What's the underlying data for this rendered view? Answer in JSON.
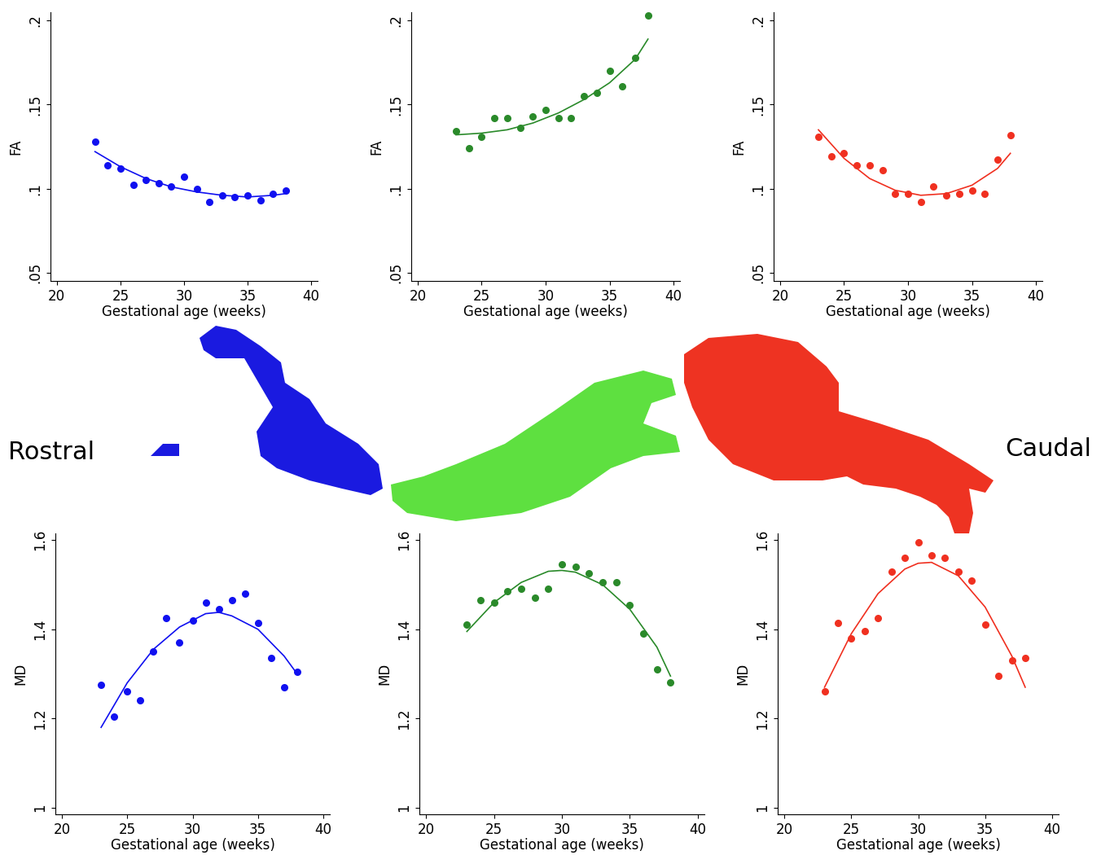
{
  "texts": [
    "Rostral",
    "Caudal"
  ],
  "chart_data": [
    {
      "type": "scatter",
      "color": "#1010f0",
      "xlabel": "Gestational age (weeks)",
      "ylabel": "FA",
      "xlim": [
        19.5,
        40.5
      ],
      "ylim": [
        0.045,
        0.205
      ],
      "xticks": [
        20,
        25,
        30,
        35,
        40
      ],
      "yticks": [
        {
          "value": 0.05,
          "label": ".05"
        },
        {
          "value": 0.1,
          "label": ".1"
        },
        {
          "value": 0.15,
          "label": ".15"
        },
        {
          "value": 0.2,
          "label": ".2"
        }
      ],
      "series": [
        {
          "type": "scatter",
          "marker": "o",
          "x": [
            23,
            24,
            25,
            26,
            27,
            28,
            29,
            30,
            31,
            32,
            33,
            34,
            35,
            36,
            37,
            38
          ],
          "values": [
            0.128,
            0.114,
            0.112,
            0.102,
            0.105,
            0.103,
            0.101,
            0.107,
            0.1,
            0.092,
            0.096,
            0.095,
            0.096,
            0.093,
            0.097,
            0.099
          ]
        },
        {
          "type": "line",
          "line_style": "solid",
          "x": [
            23,
            25,
            27,
            29,
            31,
            33,
            35,
            37,
            38
          ],
          "values": [
            0.122,
            0.113,
            0.106,
            0.101,
            0.098,
            0.096,
            0.095,
            0.096,
            0.097
          ]
        }
      ]
    },
    {
      "type": "scatter",
      "color": "#2a8a2a",
      "xlabel": "Gestational age (weeks)",
      "ylabel": "FA",
      "xlim": [
        19.5,
        40.5
      ],
      "ylim": [
        0.045,
        0.205
      ],
      "xticks": [
        20,
        25,
        30,
        35,
        40
      ],
      "yticks": [
        {
          "value": 0.05,
          "label": ".05"
        },
        {
          "value": 0.1,
          "label": ".1"
        },
        {
          "value": 0.15,
          "label": ".15"
        },
        {
          "value": 0.2,
          "label": ".2"
        }
      ],
      "series": [
        {
          "type": "scatter",
          "marker": "o",
          "x": [
            23,
            24,
            25,
            26,
            27,
            28,
            29,
            30,
            31,
            32,
            33,
            34,
            35,
            36,
            37,
            38
          ],
          "values": [
            0.134,
            0.124,
            0.131,
            0.142,
            0.142,
            0.136,
            0.143,
            0.147,
            0.142,
            0.142,
            0.155,
            0.157,
            0.17,
            0.161,
            0.178,
            0.203
          ]
        },
        {
          "type": "line",
          "line_style": "solid",
          "x": [
            23,
            25,
            27,
            29,
            31,
            33,
            35,
            37,
            38
          ],
          "values": [
            0.132,
            0.133,
            0.135,
            0.139,
            0.145,
            0.153,
            0.163,
            0.177,
            0.189
          ]
        }
      ]
    },
    {
      "type": "scatter",
      "color": "#f03020",
      "xlabel": "Gestational age (weeks)",
      "ylabel": "FA",
      "xlim": [
        19.5,
        40.5
      ],
      "ylim": [
        0.045,
        0.205
      ],
      "xticks": [
        20,
        25,
        30,
        35,
        40
      ],
      "yticks": [
        {
          "value": 0.05,
          "label": ".05"
        },
        {
          "value": 0.1,
          "label": ".1"
        },
        {
          "value": 0.15,
          "label": ".15"
        },
        {
          "value": 0.2,
          "label": ".2"
        }
      ],
      "series": [
        {
          "type": "scatter",
          "marker": "o",
          "x": [
            23,
            24,
            25,
            26,
            27,
            28,
            29,
            30,
            31,
            32,
            33,
            34,
            35,
            36,
            37,
            38
          ],
          "values": [
            0.131,
            0.119,
            0.121,
            0.114,
            0.114,
            0.111,
            0.097,
            0.097,
            0.092,
            0.101,
            0.096,
            0.097,
            0.099,
            0.097,
            0.117,
            0.132
          ]
        },
        {
          "type": "line",
          "line_style": "solid",
          "x": [
            23,
            25,
            27,
            29,
            31,
            33,
            35,
            37,
            38
          ],
          "values": [
            0.135,
            0.118,
            0.106,
            0.099,
            0.096,
            0.097,
            0.102,
            0.112,
            0.121
          ]
        }
      ]
    },
    {
      "type": "scatter",
      "color": "#1010f0",
      "xlabel": "Gestational age (weeks)",
      "ylabel": "MD",
      "xlim": [
        19.5,
        40.5
      ],
      "ylim": [
        0.985,
        1.615
      ],
      "xticks": [
        20,
        25,
        30,
        35,
        40
      ],
      "yticks": [
        1,
        1.2,
        1.4,
        1.6
      ],
      "series": [
        {
          "type": "scatter",
          "marker": "o",
          "x": [
            23,
            24,
            25,
            26,
            27,
            28,
            29,
            30,
            31,
            32,
            33,
            34,
            35,
            36,
            37,
            38
          ],
          "values": [
            1.275,
            1.205,
            1.26,
            1.24,
            1.35,
            1.425,
            1.37,
            1.42,
            1.46,
            1.445,
            1.465,
            1.48,
            1.415,
            1.335,
            1.27,
            1.305
          ]
        },
        {
          "type": "line",
          "line_style": "solid",
          "x": [
            23,
            25,
            27,
            29,
            31,
            32,
            33,
            35,
            37,
            38
          ],
          "values": [
            1.18,
            1.28,
            1.355,
            1.405,
            1.435,
            1.438,
            1.43,
            1.4,
            1.34,
            1.3
          ]
        }
      ]
    },
    {
      "type": "scatter",
      "color": "#2a8a2a",
      "xlabel": "Gestational age (weeks)",
      "ylabel": "MD",
      "xlim": [
        19.5,
        40.5
      ],
      "ylim": [
        0.985,
        1.615
      ],
      "xticks": [
        20,
        25,
        30,
        35,
        40
      ],
      "yticks": [
        1,
        1.2,
        1.4,
        1.6
      ],
      "series": [
        {
          "type": "scatter",
          "marker": "o",
          "x": [
            23,
            24,
            25,
            26,
            27,
            28,
            29,
            30,
            31,
            32,
            33,
            34,
            35,
            36,
            37,
            38
          ],
          "values": [
            1.41,
            1.465,
            1.46,
            1.485,
            1.49,
            1.47,
            1.49,
            1.545,
            1.54,
            1.525,
            1.505,
            1.505,
            1.455,
            1.39,
            1.31,
            1.28
          ]
        },
        {
          "type": "line",
          "line_style": "solid",
          "x": [
            23,
            25,
            27,
            29,
            30,
            31,
            33,
            35,
            37,
            38
          ],
          "values": [
            1.395,
            1.46,
            1.505,
            1.53,
            1.532,
            1.528,
            1.5,
            1.445,
            1.36,
            1.295
          ]
        }
      ]
    },
    {
      "type": "scatter",
      "color": "#f03020",
      "xlabel": "Gestational age (weeks)",
      "ylabel": "MD",
      "xlim": [
        19.5,
        40.5
      ],
      "ylim": [
        0.985,
        1.615
      ],
      "xticks": [
        20,
        25,
        30,
        35,
        40
      ],
      "yticks": [
        1,
        1.2,
        1.4,
        1.6
      ],
      "series": [
        {
          "type": "scatter",
          "marker": "o",
          "x": [
            23,
            24,
            25,
            26,
            27,
            28,
            29,
            30,
            31,
            32,
            33,
            34,
            35,
            36,
            37,
            38
          ],
          "values": [
            1.26,
            1.415,
            1.38,
            1.395,
            1.425,
            1.53,
            1.56,
            1.595,
            1.565,
            1.56,
            1.53,
            1.51,
            1.41,
            1.295,
            1.33,
            1.335
          ]
        },
        {
          "type": "line",
          "line_style": "solid",
          "x": [
            23,
            25,
            27,
            29,
            30,
            31,
            33,
            35,
            37,
            38
          ],
          "values": [
            1.27,
            1.39,
            1.48,
            1.535,
            1.548,
            1.55,
            1.52,
            1.45,
            1.34,
            1.27
          ]
        }
      ]
    }
  ]
}
